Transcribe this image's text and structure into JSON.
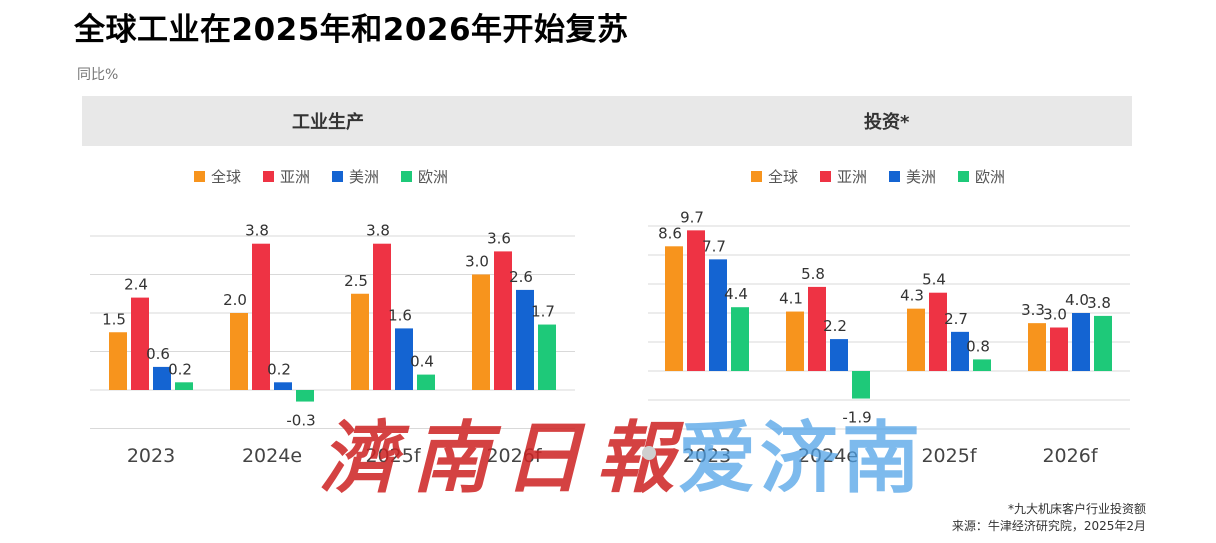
{
  "title": "全球工业在2025年和2026年开始复苏",
  "unit_label": "同比%",
  "colors": {
    "全球": "#f7941d",
    "亚洲": "#ee3344",
    "美洲": "#1464d2",
    "欧洲": "#1ec979"
  },
  "legend": [
    "全球",
    "亚洲",
    "美洲",
    "欧洲"
  ],
  "chart_data": [
    {
      "type": "bar",
      "title": "工业生产",
      "categories": [
        "2023",
        "2024e",
        "2025f",
        "2026f"
      ],
      "series": [
        {
          "name": "全球",
          "values": [
            1.5,
            2.0,
            2.5,
            3.0
          ]
        },
        {
          "name": "亚洲",
          "values": [
            2.4,
            3.8,
            3.8,
            3.6
          ]
        },
        {
          "name": "美洲",
          "values": [
            0.6,
            0.2,
            1.6,
            2.6
          ]
        },
        {
          "name": "欧洲",
          "values": [
            0.2,
            -0.3,
            0.4,
            1.7
          ]
        }
      ],
      "ylim": [
        -1,
        4
      ],
      "grid": true,
      "legend_position": "top"
    },
    {
      "type": "bar",
      "title": "投资*",
      "categories": [
        "2023",
        "2024e",
        "2025f",
        "2026f"
      ],
      "series": [
        {
          "name": "全球",
          "values": [
            8.6,
            4.1,
            4.3,
            3.3
          ]
        },
        {
          "name": "亚洲",
          "values": [
            9.7,
            5.8,
            5.4,
            3.0
          ]
        },
        {
          "name": "美洲",
          "values": [
            7.7,
            2.2,
            2.7,
            4.0
          ]
        },
        {
          "name": "欧洲",
          "values": [
            4.4,
            -1.9,
            0.8,
            3.8
          ]
        }
      ],
      "ylim": [
        -4,
        10
      ],
      "grid": true,
      "legend_position": "top"
    }
  ],
  "watermark": {
    "left_text": "濟南日報",
    "right_text": "爱济南"
  },
  "footnote": {
    "note": "*九大机床客户行业投资额",
    "source": "来源：牛津经济研究院，2025年2月"
  }
}
